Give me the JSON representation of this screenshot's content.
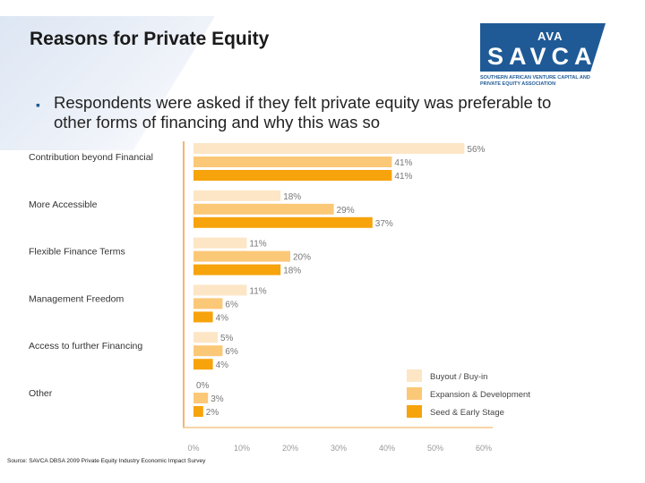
{
  "slide": {
    "title": "Reasons for Private Equity",
    "bullet": "Respondents were asked if they felt private equity was preferable to other forms of financing and why this was so",
    "source": "Source: SAVCA DBSA 2009 Private Equity Industry Economic Impact Survey"
  },
  "logo": {
    "text": "SAVCA",
    "mark": "AVA",
    "subtitle": "SOUTHERN AFRICAN VENTURE CAPITAL AND PRIVATE EQUITY ASSOCIATION",
    "color": "#1f5a96"
  },
  "chart_data": {
    "type": "bar",
    "orientation": "horizontal",
    "categories": [
      "Contribution beyond Financial",
      "More Accessible",
      "Flexible Finance Terms",
      "Management Freedom",
      "Access to further Financing",
      "Other"
    ],
    "series": [
      {
        "name": "Buyout / Buy-in",
        "color": "#fde6c6",
        "values": [
          56,
          18,
          11,
          11,
          5,
          0
        ]
      },
      {
        "name": "Expansion & Development",
        "color": "#fbc878",
        "values": [
          41,
          29,
          20,
          6,
          6,
          3
        ]
      },
      {
        "name": "Seed & Early Stage",
        "color": "#f7a30c",
        "values": [
          41,
          37,
          18,
          4,
          4,
          2
        ]
      }
    ],
    "xlim": [
      0,
      60
    ],
    "x_ticks": [
      "0%",
      "10%",
      "20%",
      "30%",
      "40%",
      "50%",
      "60%"
    ],
    "value_suffix": "%",
    "legend_position": "bottom-right",
    "grid": false
  }
}
